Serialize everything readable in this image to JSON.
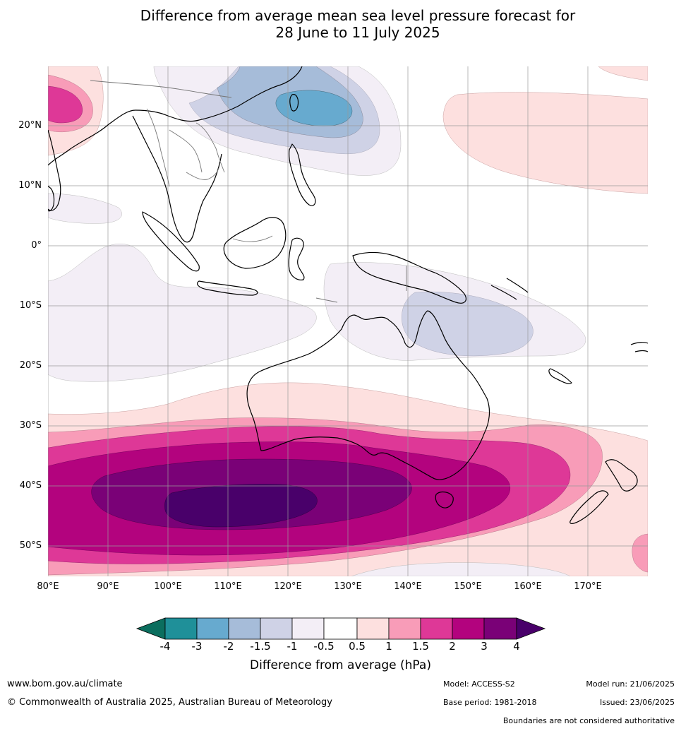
{
  "title_line1": "Difference from average mean sea level pressure forecast for",
  "title_line2": "28 June to 11 July 2025",
  "map": {
    "lat_labels": [
      "20°N",
      "10°N",
      "0°",
      "10°S",
      "20°S",
      "30°S",
      "40°S",
      "50°S"
    ],
    "lon_labels": [
      "80°E",
      "90°E",
      "100°E",
      "110°E",
      "120°E",
      "130°E",
      "140°E",
      "150°E",
      "160°E",
      "170°E"
    ],
    "colors": {
      "n4": "#0b6e5e",
      "n3": "#1f9099",
      "n2": "#67aacf",
      "n15": "#a6bcd9",
      "n1": "#cfd2e6",
      "n05": "#f3eef6",
      "zero": "#ffffff",
      "p05": "#fde0df",
      "p1": "#f89cb8",
      "p15": "#de3897",
      "p2": "#b3037e",
      "p3": "#7a0177",
      "p4": "#49006a"
    }
  },
  "colorbar": {
    "ticks": [
      "-4",
      "-3",
      "-2",
      "-1.5",
      "-1",
      "-0.5",
      "0.5",
      "1",
      "1.5",
      "2",
      "3",
      "4"
    ],
    "label": "Difference from average (hPa)"
  },
  "footer": {
    "website": "www.bom.gov.au/climate",
    "copyright": "© Commonwealth of Australia 2025, Australian Bureau of Meteorology",
    "model": "Model: ACCESS-S2",
    "base_period": "Base period: 1981-2018",
    "model_run": "Model run: 21/06/2025",
    "issued": "Issued: 23/06/2025",
    "disclaimer": "Boundaries are not considered authoritative"
  }
}
